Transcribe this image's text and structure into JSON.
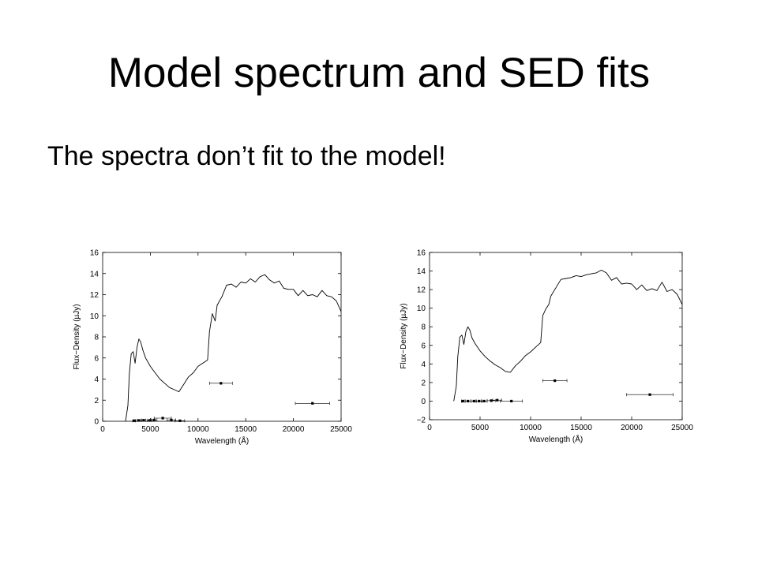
{
  "slide": {
    "title": "Model spectrum and SED fits",
    "bullet": "The spectra don’t fit to the model!"
  },
  "chart_data": [
    {
      "type": "line",
      "xlabel": "Wavelength (Å)",
      "ylabel": "Flux−Density (µJy)",
      "xlim": [
        0,
        25000
      ],
      "ylim": [
        0,
        16
      ],
      "xticks": [
        {
          "value": 0,
          "label": "0"
        },
        {
          "value": 5000,
          "label": "5000"
        },
        {
          "value": 10000,
          "label": "10000"
        },
        {
          "value": 15000,
          "label": "15000"
        },
        {
          "value": 20000,
          "label": "20000"
        },
        {
          "value": 25000,
          "label": "25000"
        }
      ],
      "yticks": [
        {
          "value": 0,
          "label": "0"
        },
        {
          "value": 2,
          "label": "2"
        },
        {
          "value": 4,
          "label": "4"
        },
        {
          "value": 6,
          "label": "6"
        },
        {
          "value": 8,
          "label": "8"
        },
        {
          "value": 10,
          "label": "10"
        },
        {
          "value": 12,
          "label": "12"
        },
        {
          "value": 14,
          "label": "14"
        },
        {
          "value": 16,
          "label": "16"
        }
      ],
      "grid": false,
      "series": [
        {
          "kind": "line",
          "color": "#000000",
          "x": [
            2400,
            2650,
            2800,
            3000,
            3200,
            3400,
            3600,
            3800,
            4000,
            4200,
            4500,
            5000,
            5500,
            6000,
            6500,
            7000,
            7500,
            8000,
            8500,
            9000,
            9500,
            10000,
            10500,
            11000,
            11200,
            11500,
            11800,
            12000,
            12500,
            13000,
            13500,
            14000,
            14500,
            15000,
            15500,
            16000,
            16500,
            17000,
            17500,
            18000,
            18500,
            19000,
            19500,
            20000,
            20500,
            21000,
            21500,
            22000,
            22500,
            23000,
            23500,
            24000,
            24500,
            25000
          ],
          "y": [
            0,
            1.5,
            4.5,
            6.4,
            6.6,
            5.5,
            7.0,
            7.8,
            7.5,
            6.8,
            6.0,
            5.2,
            4.6,
            4.0,
            3.6,
            3.2,
            3.0,
            2.8,
            3.5,
            4.2,
            4.6,
            5.2,
            5.5,
            5.8,
            8.5,
            10.2,
            9.5,
            11.0,
            11.8,
            12.9,
            13.0,
            12.7,
            13.2,
            13.1,
            13.5,
            13.2,
            13.7,
            13.9,
            13.4,
            13.1,
            13.3,
            12.6,
            12.5,
            12.5,
            11.9,
            12.4,
            11.9,
            12.0,
            11.8,
            12.4,
            11.9,
            11.8,
            11.4,
            10.4
          ]
        },
        {
          "kind": "points",
          "x": [
            3300,
            3800,
            4300,
            4900,
            5400,
            6300,
            7200,
            8100,
            12400,
            22000
          ],
          "y": [
            0.05,
            0.08,
            0.1,
            0.08,
            0.12,
            0.3,
            0.12,
            0.05,
            3.6,
            1.7
          ],
          "xerr": [
            150,
            200,
            200,
            250,
            300,
            900,
            450,
            500,
            1200,
            1800
          ]
        }
      ]
    },
    {
      "type": "line",
      "xlabel": "Wavelength (Å)",
      "ylabel": "Flux−Density (µJy)",
      "xlim": [
        0,
        25000
      ],
      "ylim": [
        -2,
        16
      ],
      "xticks": [
        {
          "value": 0,
          "label": "0"
        },
        {
          "value": 5000,
          "label": "5000"
        },
        {
          "value": 10000,
          "label": "10000"
        },
        {
          "value": 15000,
          "label": "15000"
        },
        {
          "value": 20000,
          "label": "20000"
        },
        {
          "value": 25000,
          "label": "25000"
        }
      ],
      "yticks": [
        {
          "value": -2,
          "label": "−2"
        },
        {
          "value": 0,
          "label": "0"
        },
        {
          "value": 2,
          "label": "2"
        },
        {
          "value": 4,
          "label": "4"
        },
        {
          "value": 6,
          "label": "6"
        },
        {
          "value": 8,
          "label": "8"
        },
        {
          "value": 10,
          "label": "10"
        },
        {
          "value": 12,
          "label": "12"
        },
        {
          "value": 14,
          "label": "14"
        },
        {
          "value": 16,
          "label": "16"
        }
      ],
      "grid": false,
      "series": [
        {
          "kind": "line",
          "color": "#000000",
          "x": [
            2400,
            2650,
            2800,
            3000,
            3200,
            3400,
            3600,
            3800,
            4000,
            4200,
            4500,
            5000,
            5500,
            6000,
            6500,
            7000,
            7500,
            8000,
            8500,
            9000,
            9500,
            10000,
            10500,
            11000,
            11200,
            11500,
            11800,
            12000,
            12500,
            13000,
            13500,
            14000,
            14500,
            15000,
            15500,
            16000,
            16500,
            17000,
            17500,
            18000,
            18500,
            19000,
            19500,
            20000,
            20500,
            21000,
            21500,
            22000,
            22500,
            23000,
            23500,
            24000,
            24500,
            25000
          ],
          "y": [
            0,
            1.6,
            4.8,
            6.9,
            7.1,
            6.1,
            7.5,
            8.0,
            7.6,
            6.8,
            6.2,
            5.4,
            4.8,
            4.3,
            3.9,
            3.6,
            3.2,
            3.1,
            3.8,
            4.3,
            4.9,
            5.3,
            5.8,
            6.3,
            9.2,
            9.9,
            10.4,
            11.3,
            12.2,
            13.1,
            13.2,
            13.3,
            13.5,
            13.4,
            13.6,
            13.7,
            13.8,
            14.1,
            13.8,
            13.0,
            13.3,
            12.6,
            12.7,
            12.6,
            12.0,
            12.5,
            11.9,
            12.1,
            11.9,
            12.8,
            11.8,
            12.0,
            11.5,
            10.4
          ]
        },
        {
          "kind": "points",
          "x": [
            3300,
            3800,
            4400,
            4900,
            5400,
            6100,
            6700,
            8100,
            12400,
            21800
          ],
          "y": [
            0,
            0,
            0,
            0,
            0,
            0.05,
            0.1,
            0,
            2.2,
            0.7
          ],
          "xerr": [
            150,
            250,
            250,
            300,
            300,
            400,
            450,
            1100,
            1200,
            2300
          ]
        }
      ]
    }
  ]
}
